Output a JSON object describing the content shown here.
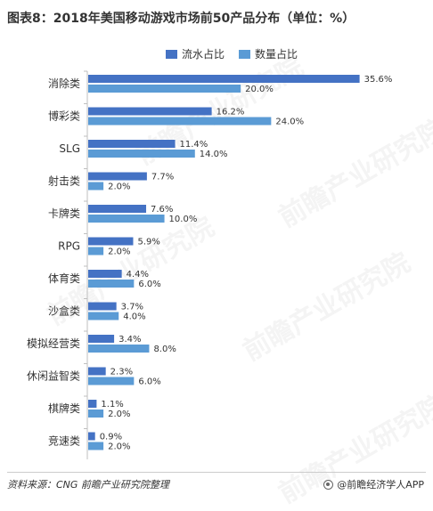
{
  "title": "图表8：2018年美国移动游戏市场前50产品分布（单位：%）",
  "chart_data": {
    "type": "bar",
    "orientation": "horizontal",
    "categories": [
      "消除类",
      "博彩类",
      "SLG",
      "射击类",
      "卡牌类",
      "RPG",
      "体育类",
      "沙盒类",
      "模拟经营类",
      "休闲益智类",
      "棋牌类",
      "竞速类"
    ],
    "series": [
      {
        "name": "流水占比",
        "color": "#4472C4",
        "values": [
          35.6,
          16.2,
          11.4,
          7.7,
          7.6,
          5.9,
          4.4,
          3.7,
          3.4,
          2.3,
          1.1,
          0.9
        ]
      },
      {
        "name": "数量占比",
        "color": "#5B9BD5",
        "values": [
          20.0,
          24.0,
          14.0,
          2.0,
          10.0,
          2.0,
          6.0,
          4.0,
          8.0,
          6.0,
          2.0,
          2.0
        ]
      }
    ],
    "value_suffix": "%",
    "xlim": [
      0,
      37.4
    ],
    "legend_position": "top",
    "grid": false
  },
  "watermark": "前瞻产业研究院",
  "footer": {
    "source": "资料来源：CNG  前瞻产业研究院整理",
    "brand": "@前瞻经济学人APP"
  }
}
